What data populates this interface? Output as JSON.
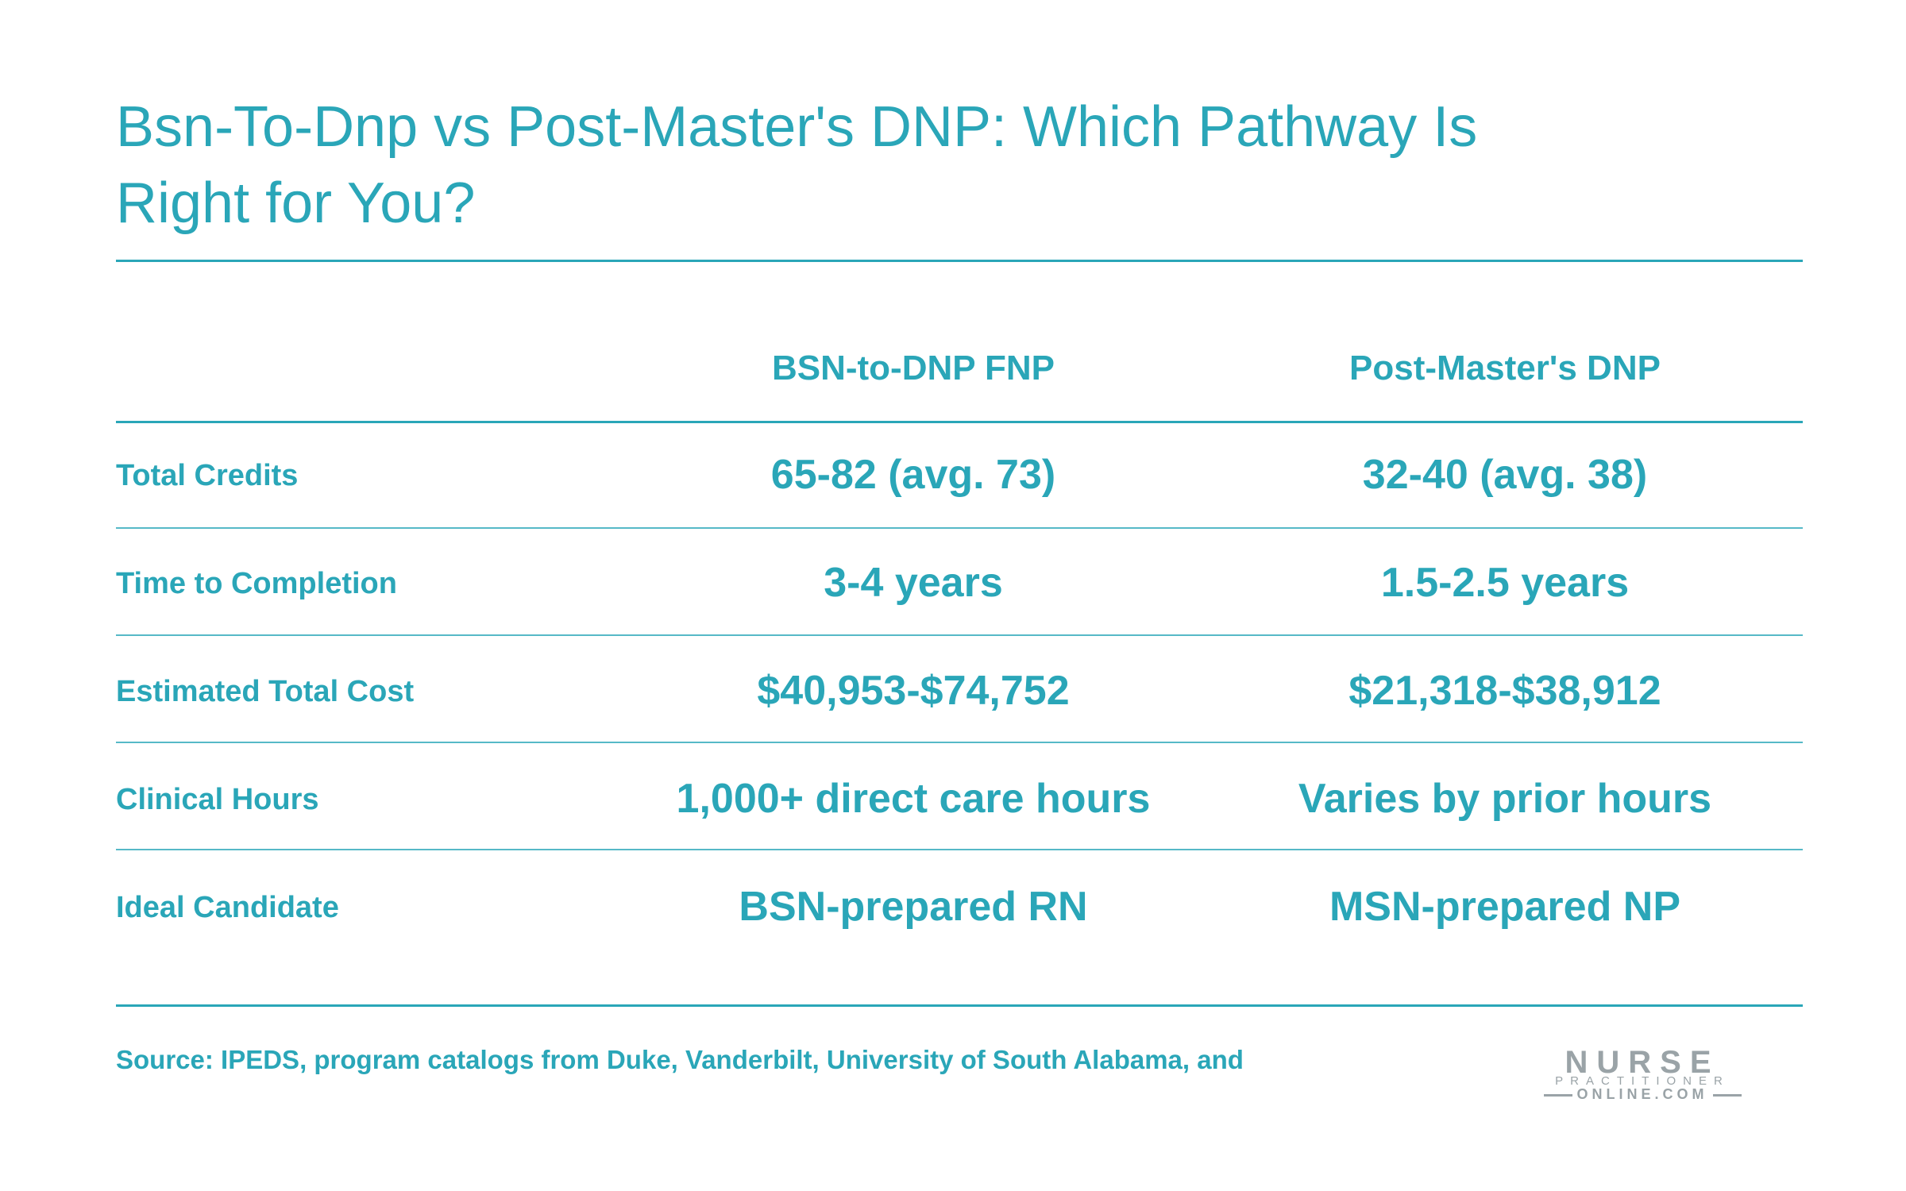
{
  "title": "Bsn-To-Dnp vs Post-Master's DNP: Which Pathway Is Right for You?",
  "table": {
    "columns": [
      "BSN-to-DNP FNP",
      "Post-Master's DNP"
    ],
    "rows": [
      {
        "label": "Total Credits",
        "values": [
          "65-82 (avg. 73)",
          "32-40 (avg. 38)"
        ]
      },
      {
        "label": "Time to Completion",
        "values": [
          "3-4 years",
          "1.5-2.5 years"
        ]
      },
      {
        "label": "Estimated Total Cost",
        "values": [
          "$40,953-$74,752",
          "$21,318-$38,912"
        ]
      },
      {
        "label": "Clinical Hours",
        "values": [
          "1,000+ direct care hours",
          "Varies by prior hours"
        ]
      },
      {
        "label": "Ideal Candidate",
        "values": [
          "BSN-prepared RN",
          "MSN-prepared NP"
        ]
      }
    ]
  },
  "source": "Source: IPEDS, program catalogs from Duke, Vanderbilt, University of South Alabama, and",
  "logo": {
    "line1": "NURSE",
    "line2": "PRACTITIONER",
    "line3": "ONLINE.COM"
  },
  "colors": {
    "accent": "#2aa6b8",
    "logo_gray": "#9aa3a7"
  }
}
